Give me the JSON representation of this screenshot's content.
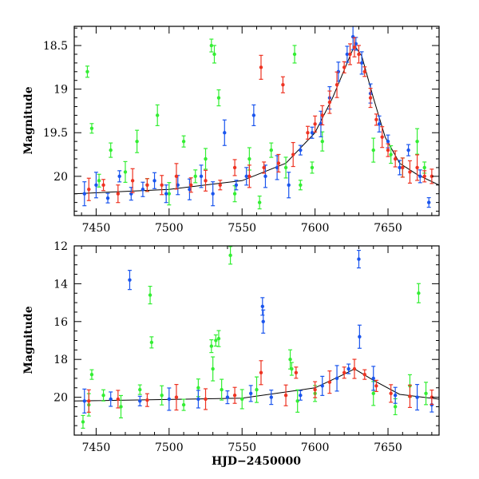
{
  "chart_data": [
    {
      "type": "scatter",
      "panel": "top",
      "title": "",
      "xlabel": "",
      "ylabel": "Magnitude",
      "xlim": [
        7435,
        7685
      ],
      "ylim": [
        20.45,
        18.28
      ],
      "y_inverted": true,
      "x_ticks": [
        7450,
        7500,
        7550,
        7600,
        7650
      ],
      "x_tick_labels": [
        "7450",
        "7500",
        "7550",
        "7600",
        "7650"
      ],
      "y_ticks": [
        18.5,
        19,
        19.5,
        20
      ],
      "y_tick_labels": [
        "18.5",
        "19",
        "19.5",
        "20"
      ],
      "series": [
        {
          "color": "#33ee33",
          "points": [
            [
              7444,
              18.8
            ],
            [
              7447,
              19.45
            ],
            [
              7452,
              20.05
            ],
            [
              7460,
              19.7
            ],
            [
              7470,
              19.95
            ],
            [
              7478,
              19.6
            ],
            [
              7485,
              20.1
            ],
            [
              7492,
              19.3
            ],
            [
              7500,
              20.2
            ],
            [
              7510,
              19.6
            ],
            [
              7518,
              20.0
            ],
            [
              7525,
              19.8
            ],
            [
              7529,
              18.5
            ],
            [
              7531,
              18.6
            ],
            [
              7534,
              19.1
            ],
            [
              7545,
              20.2
            ],
            [
              7555,
              19.8
            ],
            [
              7562,
              20.3
            ],
            [
              7570,
              19.7
            ],
            [
              7580,
              19.9
            ],
            [
              7586,
              18.6
            ],
            [
              7590,
              20.1
            ],
            [
              7598,
              19.9
            ],
            [
              7605,
              19.6
            ],
            [
              7640,
              19.7
            ],
            [
              7652,
              19.75
            ],
            [
              7660,
              19.9
            ],
            [
              7670,
              19.6
            ],
            [
              7675,
              19.9
            ]
          ]
        },
        {
          "color": "#1a55ee",
          "points": [
            [
              7442,
              20.2
            ],
            [
              7450,
              20.1
            ],
            [
              7458,
              20.25
            ],
            [
              7466,
              20.0
            ],
            [
              7474,
              20.2
            ],
            [
              7482,
              20.15
            ],
            [
              7490,
              20.05
            ],
            [
              7498,
              20.2
            ],
            [
              7506,
              20.1
            ],
            [
              7514,
              20.15
            ],
            [
              7522,
              20.0
            ],
            [
              7530,
              20.2
            ],
            [
              7538,
              19.5
            ],
            [
              7546,
              20.1
            ],
            [
              7553,
              20.0
            ],
            [
              7558,
              19.3
            ],
            [
              7566,
              20.0
            ],
            [
              7574,
              19.9
            ],
            [
              7582,
              20.1
            ],
            [
              7590,
              19.7
            ],
            [
              7598,
              19.5
            ],
            [
              7604,
              19.4
            ],
            [
              7610,
              19.1
            ],
            [
              7616,
              18.8
            ],
            [
              7622,
              18.6
            ],
            [
              7626,
              18.4
            ],
            [
              7628,
              18.48
            ],
            [
              7632,
              18.7
            ],
            [
              7638,
              19.05
            ],
            [
              7644,
              19.4
            ],
            [
              7650,
              19.6
            ],
            [
              7658,
              19.9
            ],
            [
              7664,
              19.7
            ],
            [
              7672,
              20.0
            ],
            [
              7678,
              20.3
            ]
          ]
        },
        {
          "color": "#ee3322",
          "points": [
            [
              7445,
              20.15
            ],
            [
              7455,
              20.1
            ],
            [
              7465,
              20.2
            ],
            [
              7475,
              20.05
            ],
            [
              7485,
              20.1
            ],
            [
              7495,
              20.1
            ],
            [
              7505,
              20.0
            ],
            [
              7515,
              20.1
            ],
            [
              7525,
              20.05
            ],
            [
              7535,
              20.1
            ],
            [
              7545,
              19.9
            ],
            [
              7555,
              20.0
            ],
            [
              7563,
              18.75
            ],
            [
              7565,
              19.9
            ],
            [
              7575,
              19.85
            ],
            [
              7578,
              18.95
            ],
            [
              7585,
              19.75
            ],
            [
              7595,
              19.5
            ],
            [
              7600,
              19.4
            ],
            [
              7605,
              19.3
            ],
            [
              7610,
              19.15
            ],
            [
              7615,
              18.95
            ],
            [
              7620,
              18.75
            ],
            [
              7624,
              18.6
            ],
            [
              7627,
              18.52
            ],
            [
              7630,
              18.6
            ],
            [
              7634,
              18.8
            ],
            [
              7638,
              19.1
            ],
            [
              7642,
              19.35
            ],
            [
              7646,
              19.55
            ],
            [
              7650,
              19.7
            ],
            [
              7655,
              19.8
            ],
            [
              7660,
              19.9
            ],
            [
              7665,
              19.95
            ],
            [
              7670,
              19.9
            ],
            [
              7675,
              20.0
            ],
            [
              7680,
              20.0
            ]
          ]
        }
      ],
      "model_curve": [
        [
          7435,
          20.2
        ],
        [
          7500,
          20.15
        ],
        [
          7550,
          20.05
        ],
        [
          7580,
          19.85
        ],
        [
          7600,
          19.5
        ],
        [
          7612,
          19.1
        ],
        [
          7620,
          18.78
        ],
        [
          7627,
          18.5
        ],
        [
          7632,
          18.62
        ],
        [
          7640,
          19.1
        ],
        [
          7648,
          19.55
        ],
        [
          7658,
          19.85
        ],
        [
          7670,
          19.98
        ],
        [
          7685,
          20.1
        ]
      ]
    },
    {
      "type": "scatter",
      "panel": "bottom",
      "title": "",
      "xlabel": "HJD−2450000",
      "ylabel": "Magnitude",
      "xlim": [
        7435,
        7685
      ],
      "ylim": [
        22,
        12
      ],
      "y_inverted": true,
      "x_ticks": [
        7450,
        7500,
        7550,
        7600,
        7650
      ],
      "x_tick_labels": [
        "7450",
        "7500",
        "7550",
        "7600",
        "7650"
      ],
      "y_ticks": [
        12,
        14,
        16,
        18,
        20
      ],
      "y_tick_labels": [
        "12",
        "14",
        "16",
        "18",
        "20"
      ],
      "series": [
        {
          "color": "#33ee33",
          "points": [
            [
              7441,
              21.3
            ],
            [
              7445,
              20.4
            ],
            [
              7447,
              18.8
            ],
            [
              7455,
              19.9
            ],
            [
              7467,
              20.5
            ],
            [
              7480,
              19.6
            ],
            [
              7487,
              14.6
            ],
            [
              7488,
              17.1
            ],
            [
              7495,
              19.9
            ],
            [
              7510,
              20.4
            ],
            [
              7520,
              19.5
            ],
            [
              7529,
              17.3
            ],
            [
              7530,
              18.5
            ],
            [
              7532,
              17.0
            ],
            [
              7534,
              16.9
            ],
            [
              7536,
              19.6
            ],
            [
              7542,
              12.5
            ],
            [
              7550,
              20.1
            ],
            [
              7560,
              19.6
            ],
            [
              7583,
              18.0
            ],
            [
              7584,
              18.5
            ],
            [
              7588,
              20.2
            ],
            [
              7600,
              19.8
            ],
            [
              7640,
              19.8
            ],
            [
              7655,
              20.5
            ],
            [
              7665,
              19.4
            ],
            [
              7671,
              14.5
            ],
            [
              7676,
              19.8
            ]
          ]
        },
        {
          "color": "#1a55ee",
          "points": [
            [
              7442,
              20.2
            ],
            [
              7460,
              20.1
            ],
            [
              7473,
              13.8
            ],
            [
              7480,
              20.2
            ],
            [
              7500,
              20.1
            ],
            [
              7520,
              20.1
            ],
            [
              7540,
              20.0
            ],
            [
              7556,
              19.8
            ],
            [
              7564,
              15.2
            ],
            [
              7564.5,
              16.0
            ],
            [
              7570,
              20.0
            ],
            [
              7590,
              19.9
            ],
            [
              7605,
              19.4
            ],
            [
              7615,
              19.0
            ],
            [
              7623,
              18.5
            ],
            [
              7630,
              12.7
            ],
            [
              7630.5,
              16.8
            ],
            [
              7640,
              19.0
            ],
            [
              7655,
              19.9
            ],
            [
              7670,
              20.0
            ],
            [
              7680,
              20.4
            ]
          ]
        },
        {
          "color": "#ee3322",
          "points": [
            [
              7445,
              20.2
            ],
            [
              7465,
              20.1
            ],
            [
              7485,
              20.15
            ],
            [
              7505,
              20.0
            ],
            [
              7525,
              20.1
            ],
            [
              7545,
              19.9
            ],
            [
              7563,
              18.7
            ],
            [
              7580,
              19.9
            ],
            [
              7587,
              18.7
            ],
            [
              7600,
              19.6
            ],
            [
              7610,
              19.2
            ],
            [
              7620,
              18.7
            ],
            [
              7627,
              18.5
            ],
            [
              7634,
              18.8
            ],
            [
              7642,
              19.4
            ],
            [
              7652,
              19.8
            ],
            [
              7665,
              19.95
            ],
            [
              7680,
              20.0
            ]
          ]
        }
      ],
      "model_curve": [
        [
          7435,
          20.2
        ],
        [
          7550,
          20.05
        ],
        [
          7600,
          19.5
        ],
        [
          7620,
          18.78
        ],
        [
          7627,
          18.5
        ],
        [
          7640,
          19.1
        ],
        [
          7658,
          19.85
        ],
        [
          7685,
          20.1
        ]
      ]
    }
  ]
}
